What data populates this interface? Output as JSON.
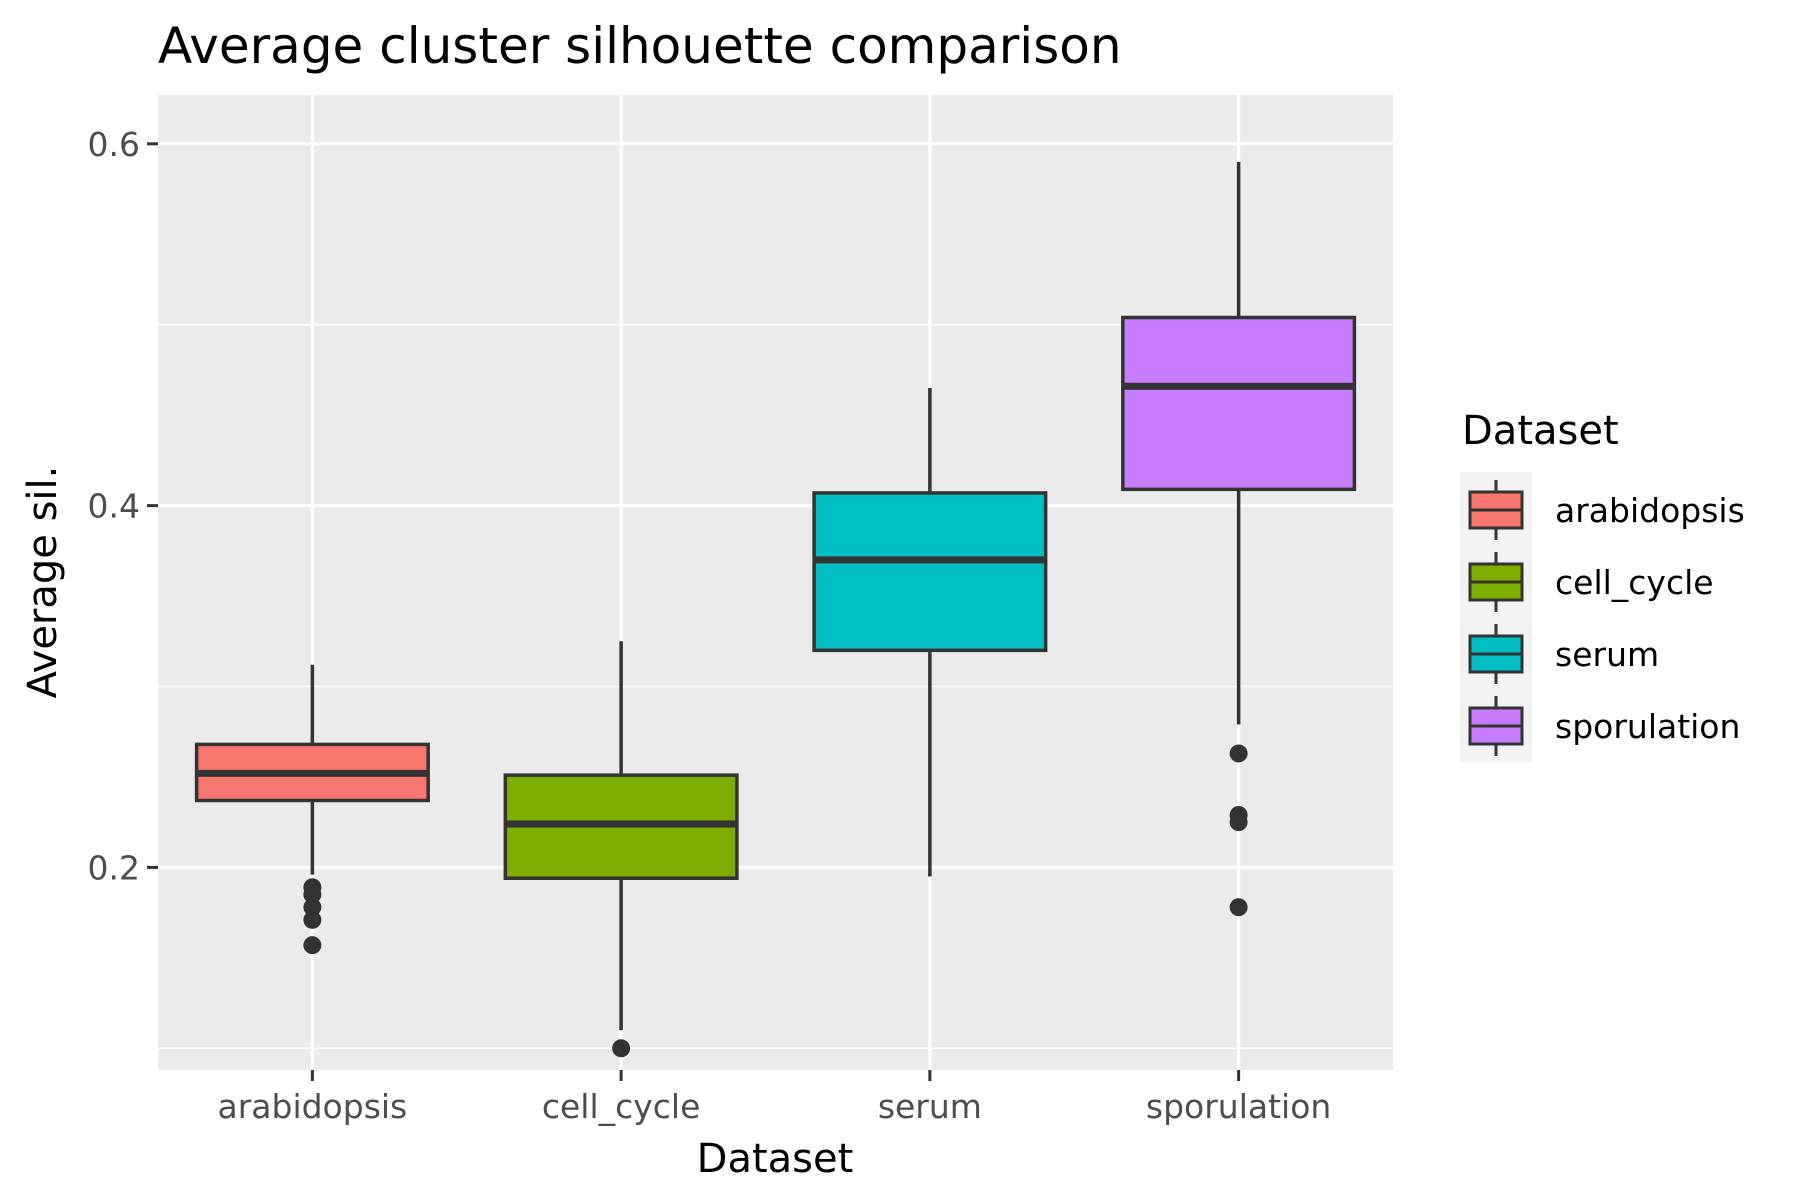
{
  "chart_data": {
    "type": "boxplot",
    "title": "Average cluster silhouette comparison",
    "xlabel": "Dataset",
    "ylabel": "Average sil.",
    "ylim": [
      0.088,
      0.627
    ],
    "yticks": [
      0.2,
      0.4,
      0.6
    ],
    "ytick_labels": [
      "0.2",
      "0.4",
      "0.6"
    ],
    "grid": true,
    "legend_position": "right",
    "legend_title": "Dataset",
    "categories": [
      "arabidopsis",
      "cell_cycle",
      "serum",
      "sporulation"
    ],
    "colors": [
      "#F8766D",
      "#7CAE00",
      "#00BFC4",
      "#C77CFF"
    ],
    "boxes": [
      {
        "name": "arabidopsis",
        "whisker_low": 0.196,
        "q1": 0.237,
        "median": 0.252,
        "q3": 0.268,
        "whisker_high": 0.312,
        "outliers": [
          0.189,
          0.185,
          0.178,
          0.171,
          0.157
        ]
      },
      {
        "name": "cell_cycle",
        "whisker_low": 0.11,
        "q1": 0.194,
        "median": 0.224,
        "q3": 0.251,
        "whisker_high": 0.325,
        "outliers": [
          0.1
        ]
      },
      {
        "name": "serum",
        "whisker_low": 0.195,
        "q1": 0.32,
        "median": 0.37,
        "q3": 0.407,
        "whisker_high": 0.465,
        "outliers": []
      },
      {
        "name": "sporulation",
        "whisker_low": 0.279,
        "q1": 0.409,
        "median": 0.466,
        "q3": 0.504,
        "whisker_high": 0.59,
        "outliers": [
          0.263,
          0.229,
          0.225,
          0.178
        ]
      }
    ]
  }
}
